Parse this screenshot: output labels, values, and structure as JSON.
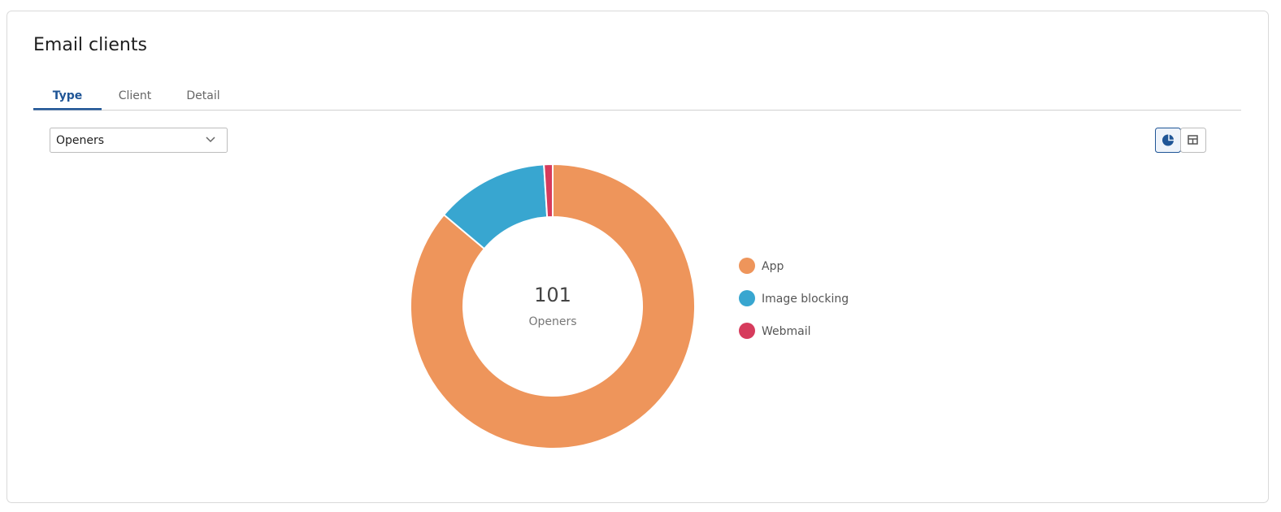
{
  "header": {
    "title": "Email clients"
  },
  "tabs": [
    "Type",
    "Client",
    "Detail"
  ],
  "active_tab": 0,
  "dropdown": {
    "selected": "Openers"
  },
  "chart_data": {
    "type": "donut",
    "center_value": 101,
    "center_label": "Openers",
    "categories": [
      "App",
      "Image blocking",
      "Webmail"
    ],
    "values": [
      87,
      13,
      1
    ],
    "colors": [
      "#ee955b",
      "#38a6d0",
      "#d63b5c"
    ]
  }
}
